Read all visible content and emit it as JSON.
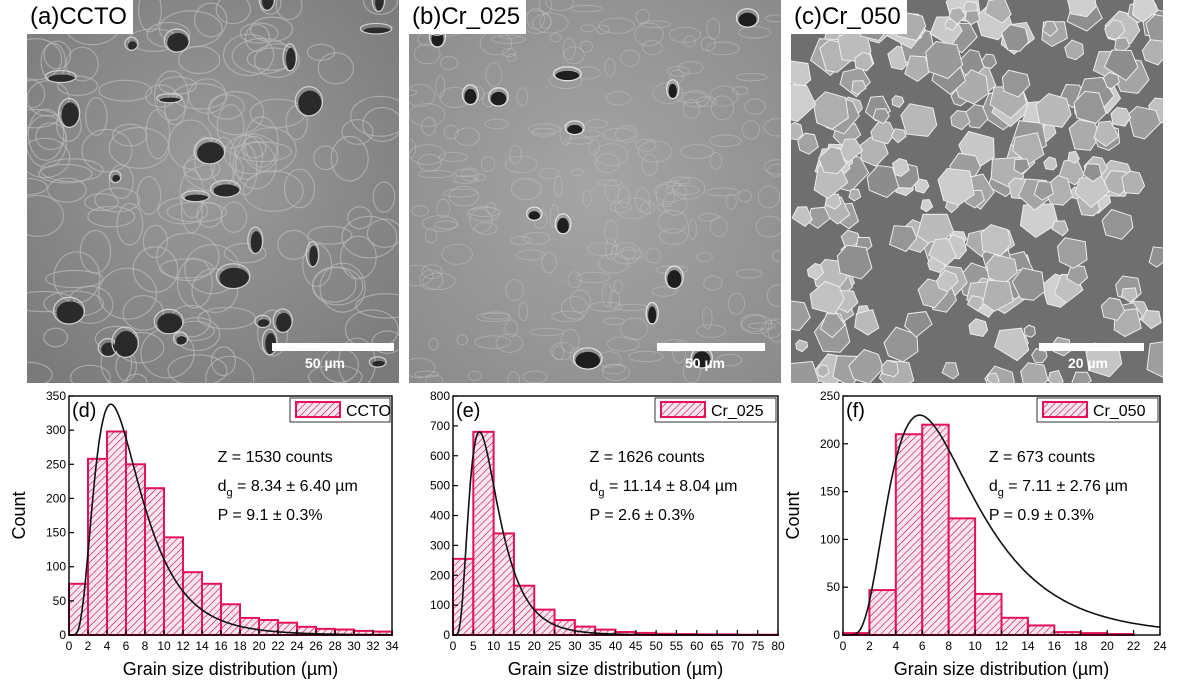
{
  "sem_panels": [
    {
      "label": "(a)",
      "name": "CCTO",
      "scale": "50 µm"
    },
    {
      "label": "(b)",
      "name": "Cr_025",
      "scale": "50 µm"
    },
    {
      "label": "(c)",
      "name": "Cr_050",
      "scale": "20 µm"
    }
  ],
  "chart_data": [
    {
      "type": "bar",
      "panel": "(d)",
      "legend": "CCTO",
      "xlabel": "Grain size distribution (µm)",
      "ylabel": "Count",
      "xlim": [
        0,
        34
      ],
      "ylim": [
        0,
        350
      ],
      "xticks": [
        0,
        2,
        4,
        6,
        8,
        10,
        12,
        14,
        16,
        18,
        20,
        22,
        24,
        26,
        28,
        30,
        32,
        34
      ],
      "yticks": [
        0,
        50,
        100,
        150,
        200,
        250,
        300,
        350
      ],
      "bin_width": 2,
      "bins": [
        0,
        2,
        4,
        6,
        8,
        10,
        12,
        14,
        16,
        18,
        20,
        22,
        24,
        26,
        28,
        30,
        32
      ],
      "values": [
        75,
        258,
        298,
        250,
        215,
        143,
        92,
        75,
        45,
        25,
        22,
        18,
        12,
        9,
        8,
        6,
        5
      ],
      "fit": {
        "type": "lognormal",
        "peak_x": 4.4,
        "peak_y": 338
      },
      "annotations": [
        "Z = 1530 counts",
        "d_g = 8.34 ± 6.40 µm",
        "P = 9.1 ± 0.3%"
      ]
    },
    {
      "type": "bar",
      "panel": "(e)",
      "legend": "Cr_025",
      "xlabel": "Grain size distribution (µm)",
      "ylabel": "",
      "xlim": [
        0,
        80
      ],
      "ylim": [
        0,
        800
      ],
      "xticks": [
        0,
        5,
        10,
        15,
        20,
        25,
        30,
        35,
        40,
        45,
        50,
        55,
        60,
        65,
        70,
        75,
        80
      ],
      "yticks": [
        0,
        100,
        200,
        300,
        400,
        500,
        600,
        700,
        800
      ],
      "bin_width": 5,
      "bins": [
        0,
        5,
        10,
        15,
        20,
        25,
        30,
        35,
        40,
        45,
        50,
        55,
        60,
        65,
        70,
        75
      ],
      "values": [
        255,
        680,
        340,
        165,
        85,
        50,
        28,
        18,
        10,
        7,
        4,
        3,
        2,
        2,
        1,
        1
      ],
      "fit": {
        "type": "lognormal",
        "peak_x": 6.5,
        "peak_y": 680
      },
      "annotations": [
        "Z = 1626 counts",
        "d_g = 11.14 ± 8.04 µm",
        "P = 2.6 ± 0.3%"
      ]
    },
    {
      "type": "bar",
      "panel": "(f)",
      "legend": "Cr_050",
      "xlabel": "Grain size distribution (µm)",
      "ylabel": "Count",
      "xlim": [
        0,
        24
      ],
      "ylim": [
        0,
        250
      ],
      "xticks": [
        0,
        2,
        4,
        6,
        8,
        10,
        12,
        14,
        16,
        18,
        20,
        22,
        24
      ],
      "yticks": [
        0,
        50,
        100,
        150,
        200,
        250
      ],
      "bin_width": 2,
      "bins": [
        0,
        2,
        4,
        6,
        8,
        10,
        12,
        14,
        16,
        18,
        20
      ],
      "values": [
        2,
        47,
        210,
        220,
        122,
        43,
        18,
        10,
        3,
        2,
        1
      ],
      "fit": {
        "type": "lognormal",
        "peak_x": 5.8,
        "peak_y": 230
      },
      "annotations": [
        "Z = 673 counts",
        "d_g = 7.11 ± 2.76 µm",
        "P = 0.9 ± 0.3%"
      ]
    }
  ]
}
